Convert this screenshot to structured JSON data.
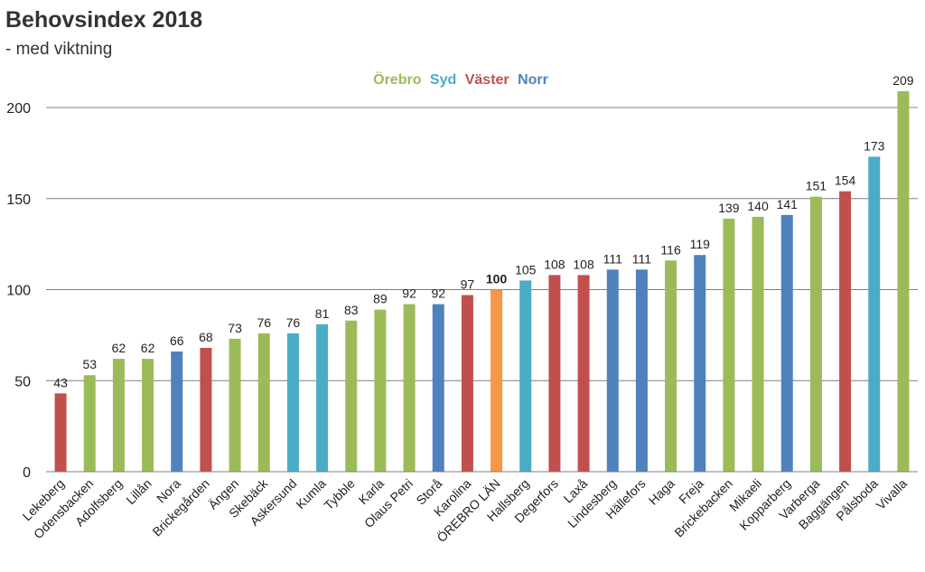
{
  "chart_data": {
    "type": "bar",
    "title": "Behovsindex 2018",
    "subtitle": "- med viktning",
    "xlabel": "",
    "ylabel": "",
    "ylim": [
      0,
      220
    ],
    "yticks": [
      0,
      50,
      100,
      150,
      200
    ],
    "grid": true,
    "legend": {
      "placement": "top-center",
      "entries": [
        {
          "name": "Örebro",
          "color": "#9bbb59"
        },
        {
          "name": "Syd",
          "color": "#4bacc6"
        },
        {
          "name": "Väster",
          "color": "#c0504d"
        },
        {
          "name": "Norr",
          "color": "#4f81bd"
        }
      ]
    },
    "highlight_color": "#f79646",
    "categories": [
      "Lekeberg",
      "Odensbacken",
      "Adolfsberg",
      "Lillån",
      "Nora",
      "Brickegården",
      "Ängen",
      "Skebäck",
      "Askersund",
      "Kumla",
      "Tybble",
      "Karla",
      "Olaus Petri",
      "Storå",
      "Karolina",
      "ÖREBRO LÄN",
      "Hallsberg",
      "Degerfors",
      "Laxå",
      "Lindesberg",
      "Hällefors",
      "Haga",
      "Freja",
      "Brickebacken",
      "Mikaeli",
      "Kopparberg",
      "Varberga",
      "Baggängen",
      "Pålsboda",
      "Vivalla"
    ],
    "values": [
      43,
      53,
      62,
      62,
      66,
      68,
      73,
      76,
      76,
      81,
      83,
      89,
      92,
      92,
      97,
      100,
      105,
      108,
      108,
      111,
      111,
      116,
      119,
      139,
      140,
      141,
      151,
      154,
      173,
      209
    ],
    "groups": [
      "Väster",
      "Örebro",
      "Örebro",
      "Örebro",
      "Norr",
      "Väster",
      "Örebro",
      "Örebro",
      "Syd",
      "Syd",
      "Örebro",
      "Örebro",
      "Örebro",
      "Norr",
      "Väster",
      "Total",
      "Syd",
      "Väster",
      "Väster",
      "Norr",
      "Norr",
      "Örebro",
      "Norr",
      "Örebro",
      "Örebro",
      "Norr",
      "Örebro",
      "Väster",
      "Syd",
      "Örebro"
    ],
    "bold_labels": [
      "ÖREBRO LÄN"
    ]
  }
}
